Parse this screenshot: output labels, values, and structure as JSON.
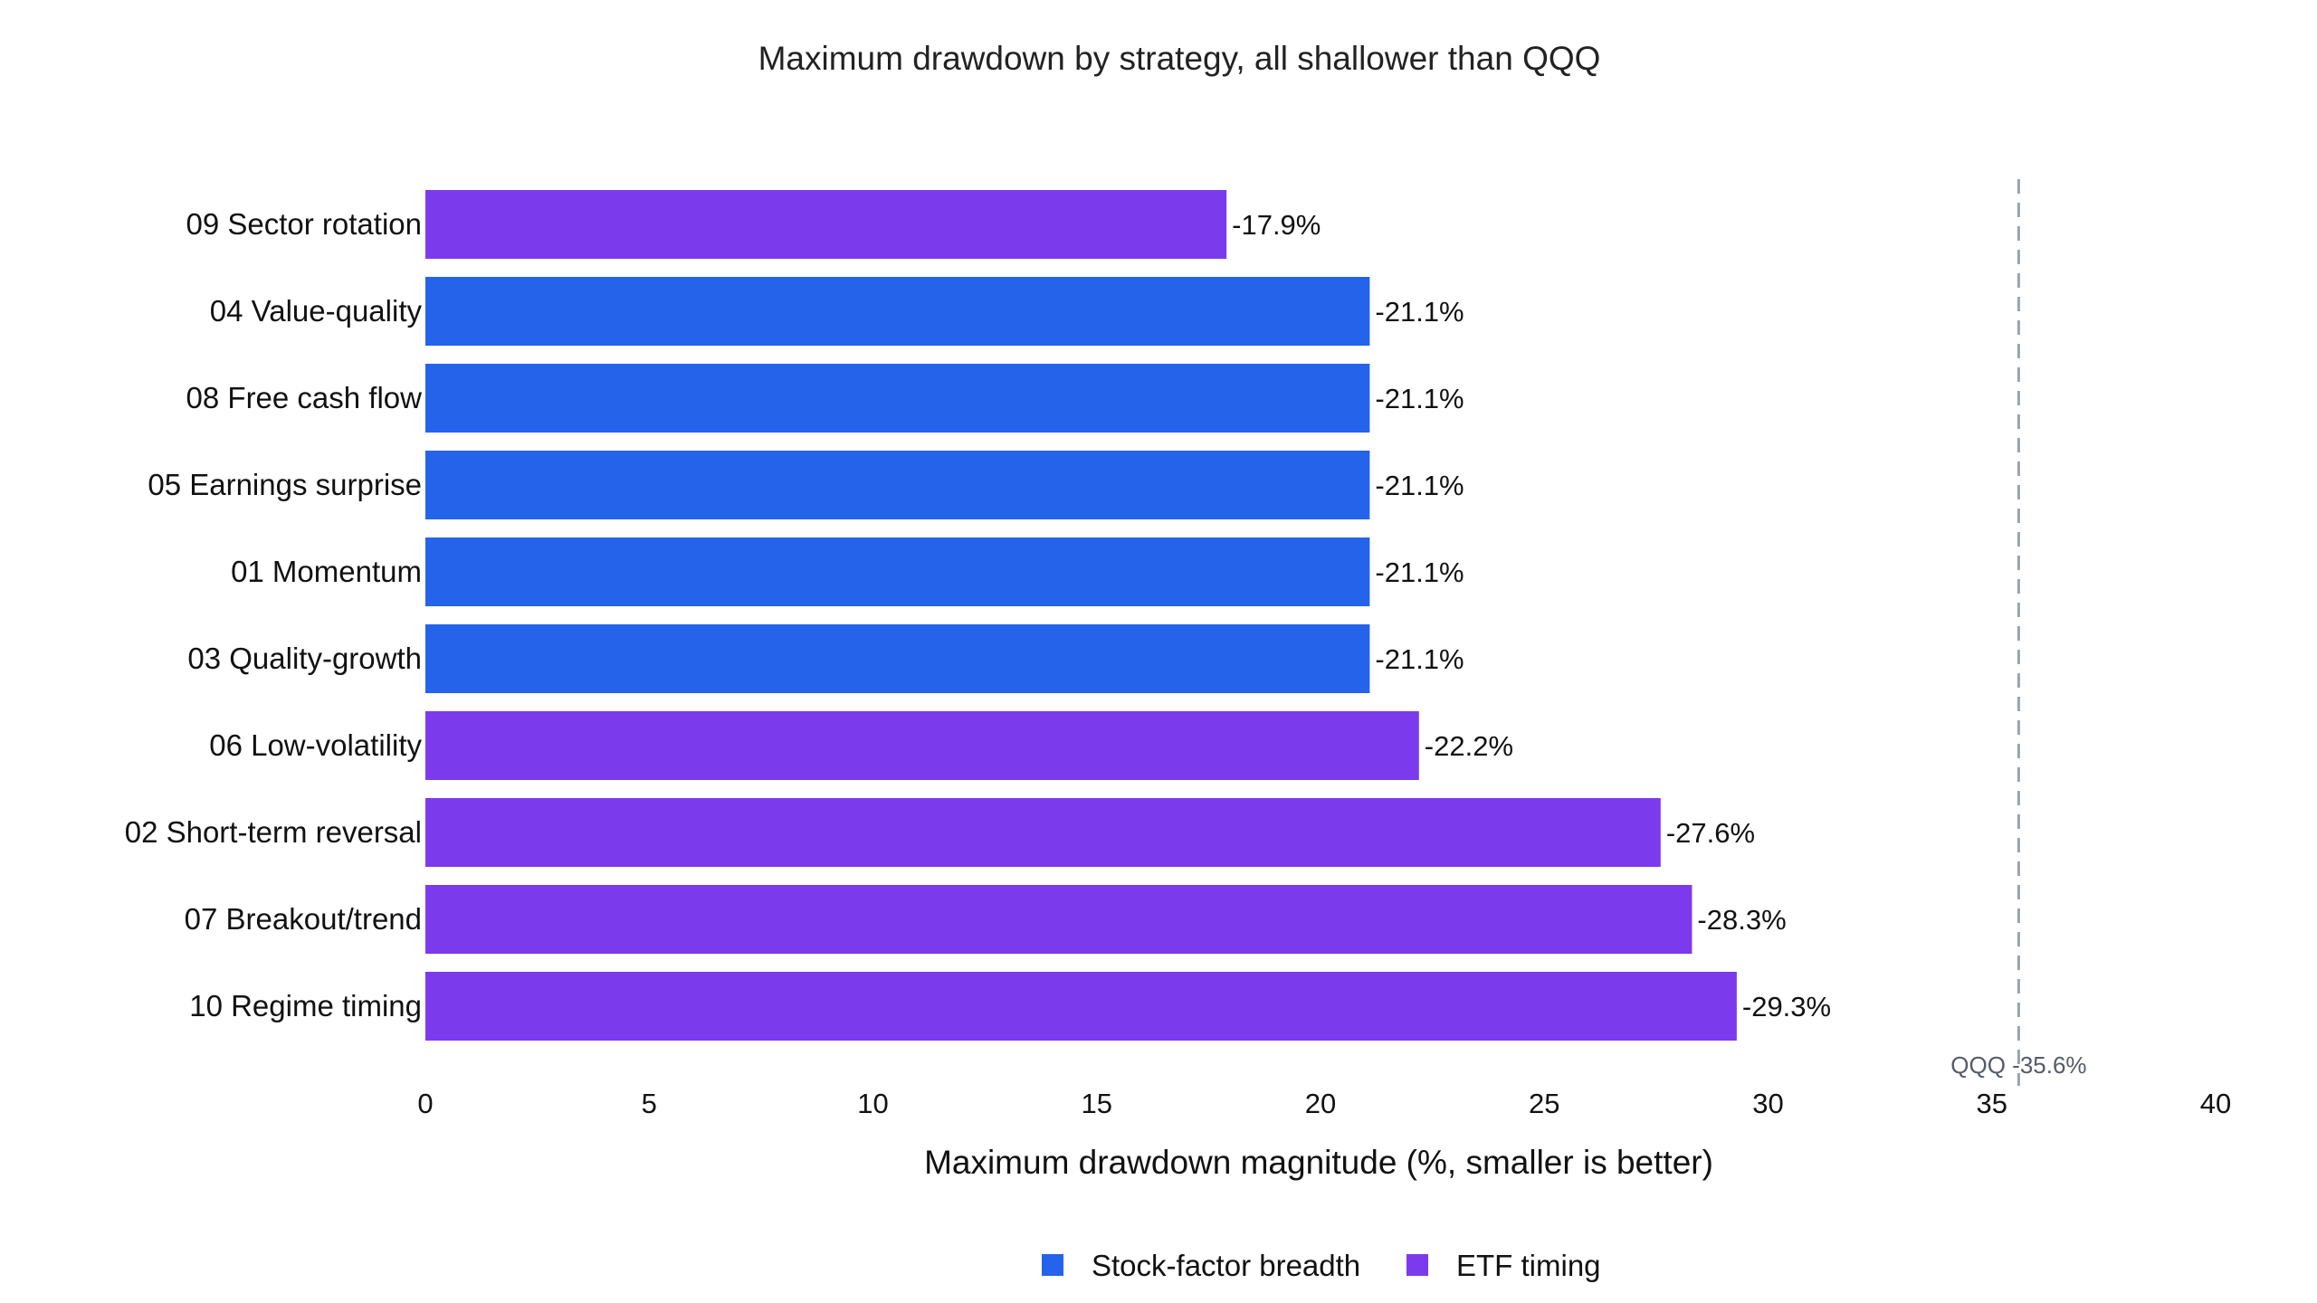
{
  "chart_data": {
    "type": "bar",
    "orientation": "horizontal",
    "title": "Maximum drawdown by strategy, all shallower than QQQ",
    "xlabel": "Maximum drawdown magnitude (%, smaller is better)",
    "ylabel": "",
    "xlim": [
      0,
      40
    ],
    "x_ticks": [
      0,
      5,
      10,
      15,
      20,
      25,
      30,
      35,
      40
    ],
    "grid": false,
    "legend_position": "bottom-center",
    "categories": [
      "09 Sector rotation",
      "04 Value-quality",
      "08 Free cash flow",
      "05 Earnings surprise",
      "01 Momentum",
      "03 Quality-growth",
      "06 Low-volatility",
      "02 Short-term reversal",
      "07 Breakout/trend",
      "10 Regime timing"
    ],
    "values": [
      17.9,
      21.1,
      21.1,
      21.1,
      21.1,
      21.1,
      22.2,
      27.6,
      28.3,
      29.3
    ],
    "value_labels": [
      "-17.9%",
      "-21.1%",
      "-21.1%",
      "-21.1%",
      "-21.1%",
      "-21.1%",
      "-22.2%",
      "-27.6%",
      "-28.3%",
      "-29.3%"
    ],
    "groups": [
      "ETF timing",
      "Stock-factor breadth",
      "Stock-factor breadth",
      "Stock-factor breadth",
      "Stock-factor breadth",
      "Stock-factor breadth",
      "ETF timing",
      "ETF timing",
      "ETF timing",
      "ETF timing"
    ],
    "legend": [
      {
        "name": "Stock-factor breadth",
        "color": "#2563eb"
      },
      {
        "name": "ETF timing",
        "color": "#7c3aed"
      }
    ],
    "reference_line": {
      "value": 35.6,
      "label": "QQQ -35.6%",
      "style": "dashed",
      "color": "#9ca3af"
    }
  }
}
